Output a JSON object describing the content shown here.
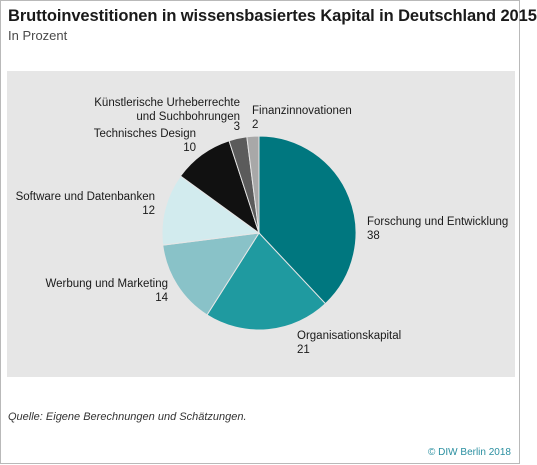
{
  "header": {
    "title": "Bruttoinvestitionen in wissensbasiertes Kapital in Deutschland 2015",
    "subtitle": "In Prozent"
  },
  "footer": {
    "source": "Quelle: Eigene Berechnungen und Schätzungen.",
    "copyright": "© DIW Berlin 2018"
  },
  "chart_data": {
    "type": "pie",
    "title": "Bruttoinvestitionen in wissensbasiertes Kapital in Deutschland 2015",
    "unit": "In Prozent",
    "slices": [
      {
        "label": "Forschung und Entwicklung",
        "value": 38,
        "color": "#00777f"
      },
      {
        "label": "Organisationskapital",
        "value": 21,
        "color": "#1f9aa0"
      },
      {
        "label": "Werbung und Marketing",
        "value": 14,
        "color": "#89c2c8"
      },
      {
        "label": "Software und Datenbanken",
        "value": 12,
        "color": "#d2ebee"
      },
      {
        "label": "Technisches Design",
        "value": 10,
        "color": "#111111"
      },
      {
        "label": "Künstlerische Urheberrechte und Suchbohrungen",
        "label_lines": [
          "Künstlerische Urheberrechte",
          "und Suchbohrungen"
        ],
        "value": 3,
        "color": "#5b5b5b"
      },
      {
        "label": "Finanzinnovationen",
        "value": 2,
        "color": "#a8a8a8"
      }
    ]
  }
}
